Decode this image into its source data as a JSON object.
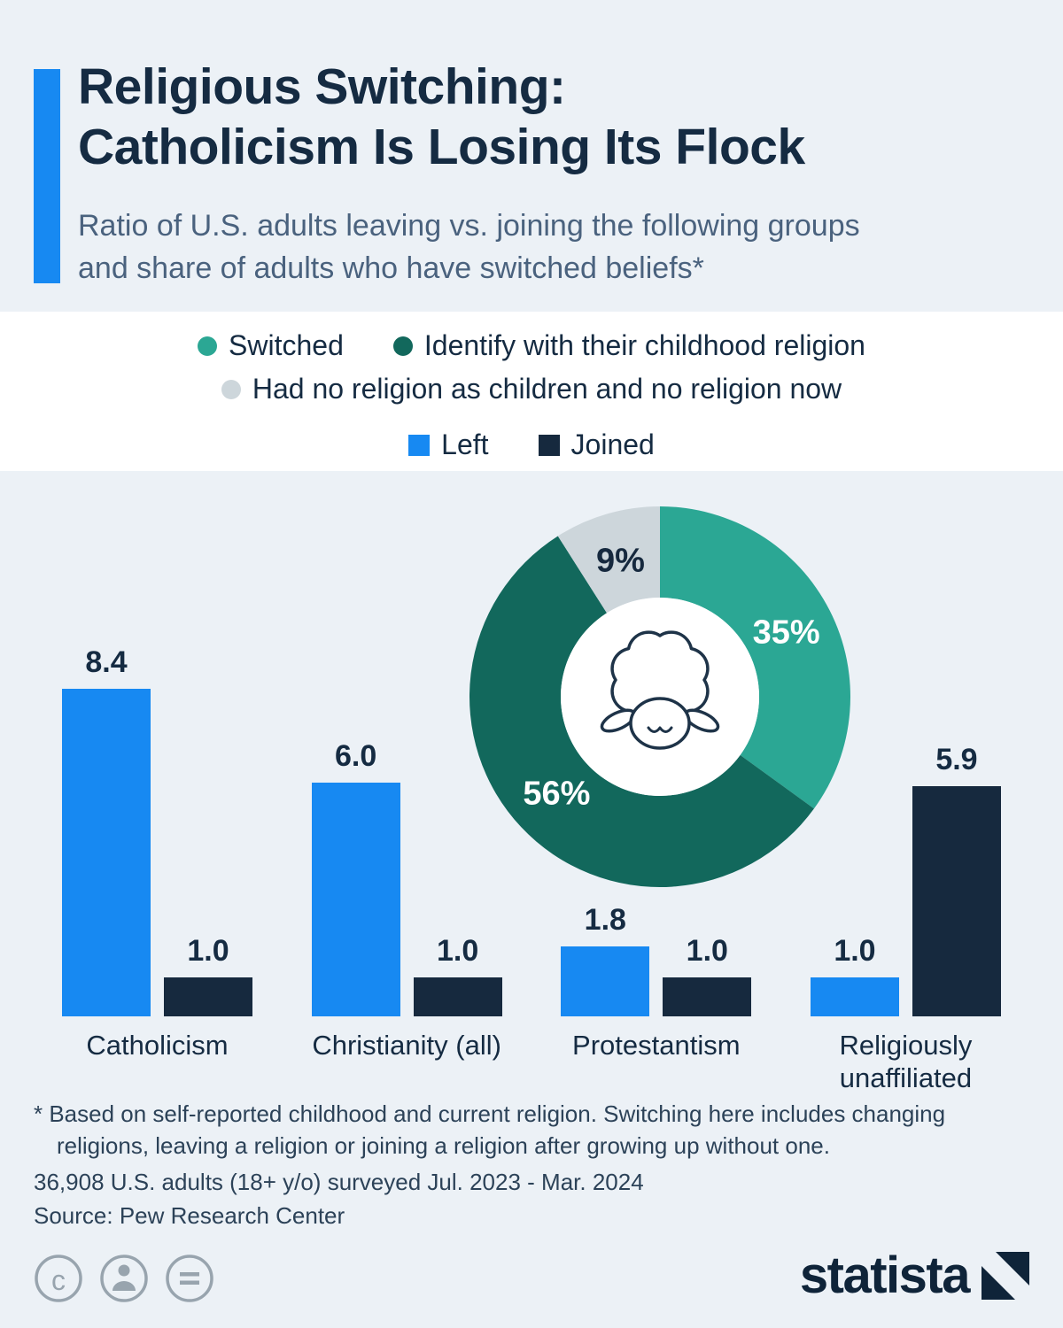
{
  "page": {
    "background": "#ecf1f6"
  },
  "header": {
    "accent_color": "#1789f2",
    "title_lines": [
      "Religious Switching:",
      "Catholicism Is Losing Its Flock"
    ],
    "subtitle": "Ratio of U.S. adults leaving vs. joining the following groups and share of adults who have switched beliefs*"
  },
  "legend": {
    "donut": [
      {
        "label": "Switched",
        "color": "#2ba794"
      },
      {
        "label": "Identify with their childhood religion",
        "color": "#12685c"
      },
      {
        "label": "Had no religion as children and no religion now",
        "color": "#cdd6db"
      }
    ],
    "bars": [
      {
        "label": "Left",
        "color": "#1789f2"
      },
      {
        "label": "Joined",
        "color": "#16293e"
      }
    ]
  },
  "chart_data": [
    {
      "type": "pie",
      "subtype": "donut",
      "title": "Share of U.S. adults who have switched beliefs",
      "unit": "%",
      "center_icon": "sheep-icon",
      "slices": [
        {
          "label": "Switched",
          "value": 35,
          "display": "35%",
          "color": "#2ba794",
          "label_color": "#ffffff"
        },
        {
          "label": "Identify with their childhood religion",
          "value": 56,
          "display": "56%",
          "color": "#12685c",
          "label_color": "#ffffff"
        },
        {
          "label": "Had no religion as children and no religion now",
          "value": 9,
          "display": "9%",
          "color": "#cdd6db",
          "label_color": "#16293e"
        }
      ]
    },
    {
      "type": "bar",
      "title": "Ratio of U.S. adults leaving vs. joining the following groups",
      "categories": [
        "Catholicism",
        "Christianity (all)",
        "Protestantism",
        "Religiously unaffiliated"
      ],
      "series": [
        {
          "name": "Left",
          "color": "#1789f2",
          "values": [
            8.4,
            6.0,
            1.8,
            1.0
          ],
          "labels": [
            "8.4",
            "6.0",
            "1.8",
            "1.0"
          ]
        },
        {
          "name": "Joined",
          "color": "#16293e",
          "values": [
            1.0,
            1.0,
            1.0,
            5.9
          ],
          "labels": [
            "1.0",
            "1.0",
            "1.0",
            "5.9"
          ]
        }
      ],
      "ylim": [
        0,
        9
      ],
      "grid": false,
      "legend_position": "top"
    }
  ],
  "footnote": {
    "text": "* Based on self-reported childhood and current religion. Switching here includes changing religions, leaving a religion or joining a religion after growing up without one.",
    "survey": "36,908 U.S. adults (18+ y/o) surveyed Jul. 2023 - Mar. 2024"
  },
  "source": "Source: Pew Research Center",
  "footer": {
    "license_icons": [
      "copyright-icon",
      "attribution-icon",
      "equals-icon"
    ]
  },
  "branding": {
    "logo_text": "statista",
    "logo_color": "#0f2439"
  }
}
